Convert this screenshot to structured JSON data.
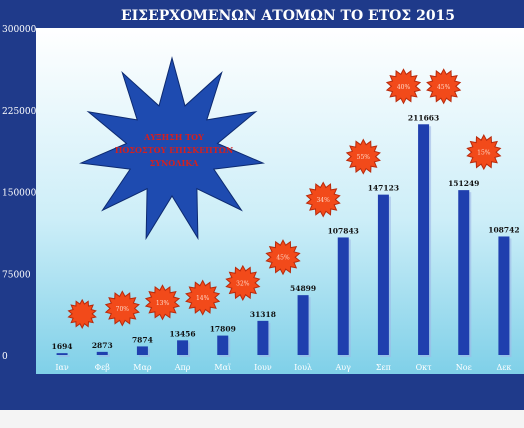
{
  "chart_data": {
    "type": "bar",
    "title": "ΕΙΣΕΡΧΟΜΕΝΩΝ ΑΤΟΜΩΝ ΤΟ ΕΤΟΣ 2015",
    "categories": [
      "Ιαν",
      "Φεβ",
      "Μαρ",
      "Απρ",
      "Μαϊ",
      "Ιουν",
      "Ιουλ",
      "Αυγ",
      "Σεπ",
      "Οκτ",
      "Νοε",
      "Δεκ"
    ],
    "values": [
      1694,
      2873,
      7874,
      13456,
      17809,
      31318,
      54899,
      107843,
      147123,
      211663,
      151249,
      108742
    ],
    "data_labels": [
      "1694",
      "2873",
      "7874",
      "13456",
      "17809",
      "31318",
      "54899",
      "107843",
      "147123",
      "211663",
      "151249",
      "108742"
    ],
    "y_ticks": [
      0,
      75000,
      150000,
      225000,
      300000
    ],
    "y_tick_labels": [
      "0",
      "75000",
      "150000",
      "225000",
      "300000"
    ],
    "ylim": [
      0,
      300000
    ],
    "grid": false,
    "legend": "none",
    "annotation_text": [
      "ΑΥΞΗΣΗ ΤΟΥ",
      "ΠΟΣΟΣΤΟΥ ΕΠΙΣΚΕΠΤΩΝ",
      "ΣΥΝΟΛΙΚΑ"
    ],
    "burst_labels": [
      "",
      "70%",
      "13%",
      "14%",
      "32%",
      "45%",
      "34%",
      "55%",
      "40%",
      "45%",
      "15%"
    ],
    "colors": {
      "frame": "#1f3a8a",
      "plot_bg_top": "#ffffff",
      "plot_bg_bottom": "#7fd0e8",
      "bar": "#1f3fae",
      "bar_shadow": "#9fb6e6",
      "title": "#ffffff",
      "axis_text": "#ffffff",
      "data_label": "#111111",
      "star": "#1e4bb0",
      "star_text": "#d32020",
      "burst": "#f24a1a",
      "burst_border": "#b82a0c"
    }
  }
}
